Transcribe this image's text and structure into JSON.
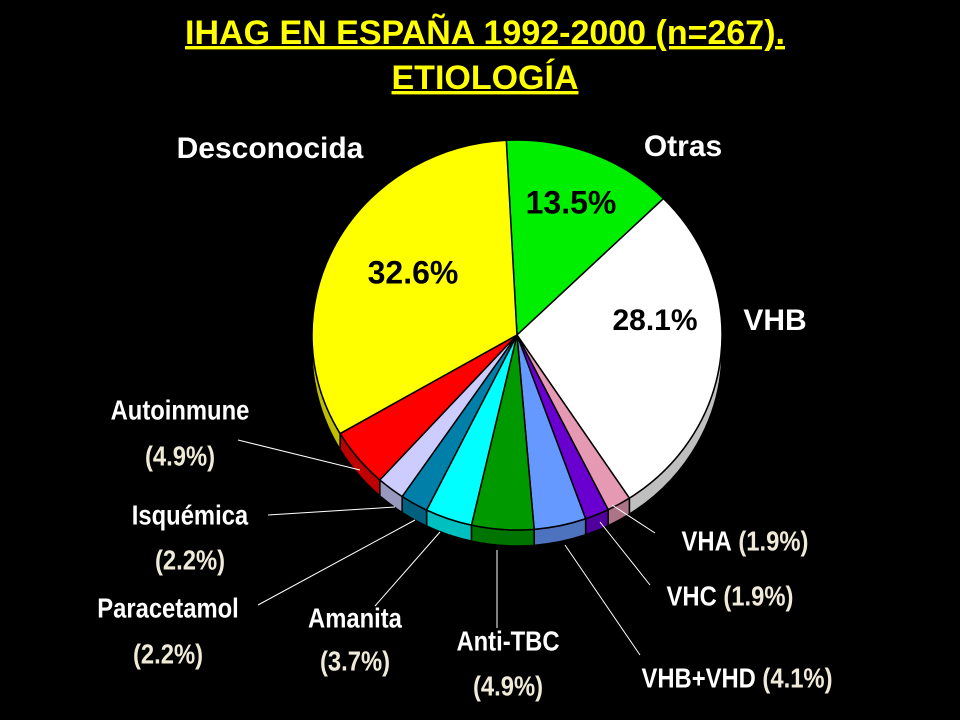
{
  "chart_data": {
    "type": "pie",
    "title": [
      "IHAG EN ESPAÑA 1992-2000 (n=267).",
      "ETIOLOGÍA"
    ],
    "categories": [
      "Otras",
      "VHB",
      "VHA",
      "VHC",
      "VHB+VHD",
      "Anti-TBC",
      "Amanita",
      "Paracetamol",
      "Isquémica",
      "Autoinmune",
      "Desconocida"
    ],
    "values": [
      13.5,
      28.1,
      1.9,
      1.9,
      4.1,
      4.9,
      3.7,
      2.2,
      2.2,
      4.9,
      32.6
    ],
    "value_labels": [
      "13.5%",
      "28.1%",
      "(1.9%)",
      "(1.9%)",
      "(4.1%)",
      "(4.9%)",
      "(3.7%)",
      "(2.2%)",
      "(2.2%)",
      "(4.9%)",
      "32.6%"
    ],
    "colors": [
      "#00ee00",
      "#ffffff",
      "#e699b3",
      "#6a00d0",
      "#6699ff",
      "#009a00",
      "#00ffff",
      "#0080a8",
      "#ccccff",
      "#ff0000",
      "#ffff00"
    ]
  }
}
